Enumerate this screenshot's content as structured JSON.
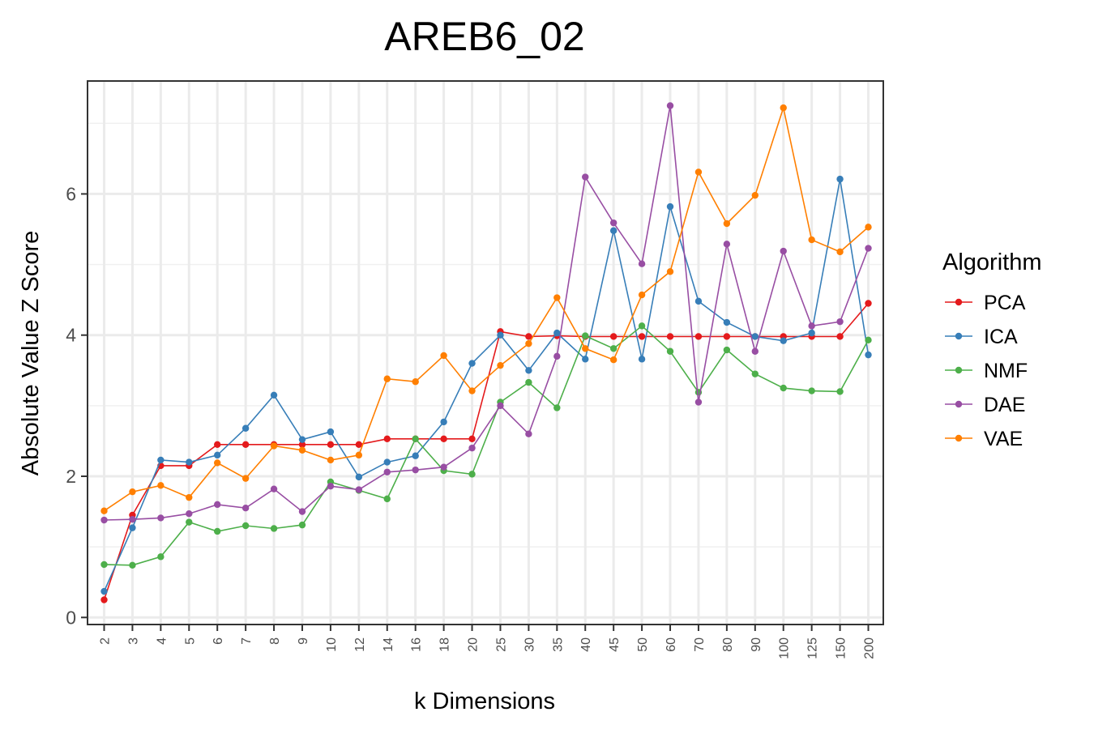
{
  "chart_data": {
    "type": "line",
    "title": "AREB6_02",
    "xlabel": "k Dimensions",
    "ylabel": "Absolute Value Z Score",
    "categories": [
      "2",
      "3",
      "4",
      "5",
      "6",
      "7",
      "8",
      "9",
      "10",
      "12",
      "14",
      "16",
      "18",
      "20",
      "25",
      "30",
      "35",
      "40",
      "45",
      "50",
      "60",
      "70",
      "80",
      "90",
      "100",
      "125",
      "150",
      "200"
    ],
    "ylim": [
      -0.1,
      7.6
    ],
    "yticks": [
      0,
      2,
      4,
      6
    ],
    "grid": true,
    "legend": {
      "title": "Algorithm",
      "position": "right"
    },
    "series": [
      {
        "name": "PCA",
        "color": "#e41a1c",
        "values": [
          0.25,
          1.45,
          2.15,
          2.15,
          2.45,
          2.45,
          2.45,
          2.45,
          2.45,
          2.45,
          2.53,
          2.53,
          2.53,
          2.53,
          4.05,
          3.98,
          3.99,
          3.98,
          3.98,
          3.98,
          3.98,
          3.98,
          3.98,
          3.98,
          3.98,
          3.98,
          3.98,
          4.45
        ]
      },
      {
        "name": "ICA",
        "color": "#377eb8",
        "values": [
          0.37,
          1.27,
          2.23,
          2.2,
          2.3,
          2.68,
          3.15,
          2.52,
          2.63,
          1.99,
          2.2,
          2.29,
          2.77,
          3.6,
          4.0,
          3.5,
          4.03,
          3.66,
          5.48,
          3.66,
          5.82,
          4.48,
          4.18,
          3.98,
          3.92,
          4.03,
          6.21,
          3.72
        ]
      },
      {
        "name": "NMF",
        "color": "#4daf4a",
        "values": [
          0.75,
          0.74,
          0.86,
          1.35,
          1.22,
          1.3,
          1.26,
          1.31,
          1.92,
          1.8,
          1.68,
          2.53,
          2.08,
          2.03,
          3.05,
          3.33,
          2.97,
          3.99,
          3.81,
          4.13,
          3.77,
          3.19,
          3.79,
          3.45,
          3.25,
          3.21,
          3.2,
          3.93
        ]
      },
      {
        "name": "DAE",
        "color": "#984ea3",
        "values": [
          1.38,
          1.39,
          1.41,
          1.47,
          1.6,
          1.55,
          1.82,
          1.5,
          1.86,
          1.81,
          2.06,
          2.09,
          2.13,
          2.4,
          3.0,
          2.6,
          3.7,
          6.24,
          5.59,
          5.01,
          7.25,
          3.05,
          5.29,
          3.77,
          5.19,
          4.13,
          4.19,
          5.23
        ]
      },
      {
        "name": "VAE",
        "color": "#ff7f00",
        "values": [
          1.51,
          1.78,
          1.87,
          1.7,
          2.19,
          1.97,
          2.43,
          2.37,
          2.23,
          2.3,
          3.38,
          3.34,
          3.71,
          3.21,
          3.57,
          3.88,
          4.53,
          3.81,
          3.65,
          4.57,
          4.9,
          6.31,
          5.58,
          5.98,
          7.22,
          5.35,
          5.18,
          5.53
        ]
      }
    ]
  }
}
